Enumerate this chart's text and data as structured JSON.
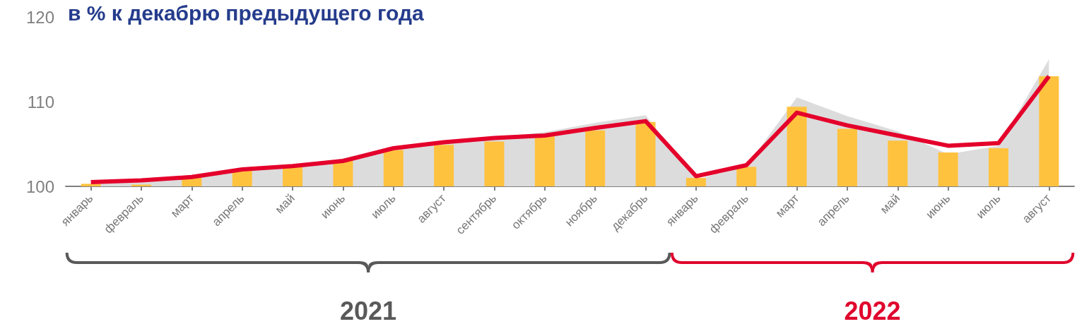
{
  "chart_data": {
    "type": "bar",
    "title": "в % к декабрю предыдущего года",
    "categories": [
      "январь",
      "февраль",
      "март",
      "апрель",
      "май",
      "июнь",
      "июль",
      "август",
      "сентябрь",
      "октябрь",
      "ноябрь",
      "декабрь",
      "январь",
      "февраль",
      "март",
      "апрель",
      "май",
      "июнь",
      "июль",
      "август"
    ],
    "series": [
      {
        "type": "area",
        "color": "#dcdcdc",
        "values": [
          100.3,
          100.5,
          101.0,
          102.0,
          102.5,
          103.3,
          104.7,
          105.3,
          105.8,
          106.4,
          107.5,
          108.4,
          100.8,
          102.4,
          110.5,
          108.3,
          106.5,
          103.8,
          104.8,
          115.0
        ]
      },
      {
        "color": "#ffc23f",
        "values": [
          100.3,
          100.2,
          101.0,
          101.9,
          102.3,
          103.0,
          104.3,
          104.9,
          105.3,
          105.9,
          106.6,
          107.6,
          101.0,
          102.3,
          109.4,
          106.8,
          105.4,
          104.0,
          104.5,
          113.0
        ]
      },
      {
        "type": "line",
        "color": "#e4002b",
        "values": [
          100.5,
          100.7,
          101.1,
          102.0,
          102.4,
          103.0,
          104.5,
          105.2,
          105.7,
          106.0,
          106.9,
          107.7,
          101.2,
          102.5,
          108.7,
          107.2,
          106.0,
          104.8,
          105.1,
          113.0
        ]
      }
    ],
    "ylim": [
      100,
      120
    ],
    "yticks": [
      100,
      110,
      120
    ],
    "grid": false,
    "marker": "none",
    "line_style": "solid",
    "annotations": [
      "2021",
      "2022"
    ]
  }
}
